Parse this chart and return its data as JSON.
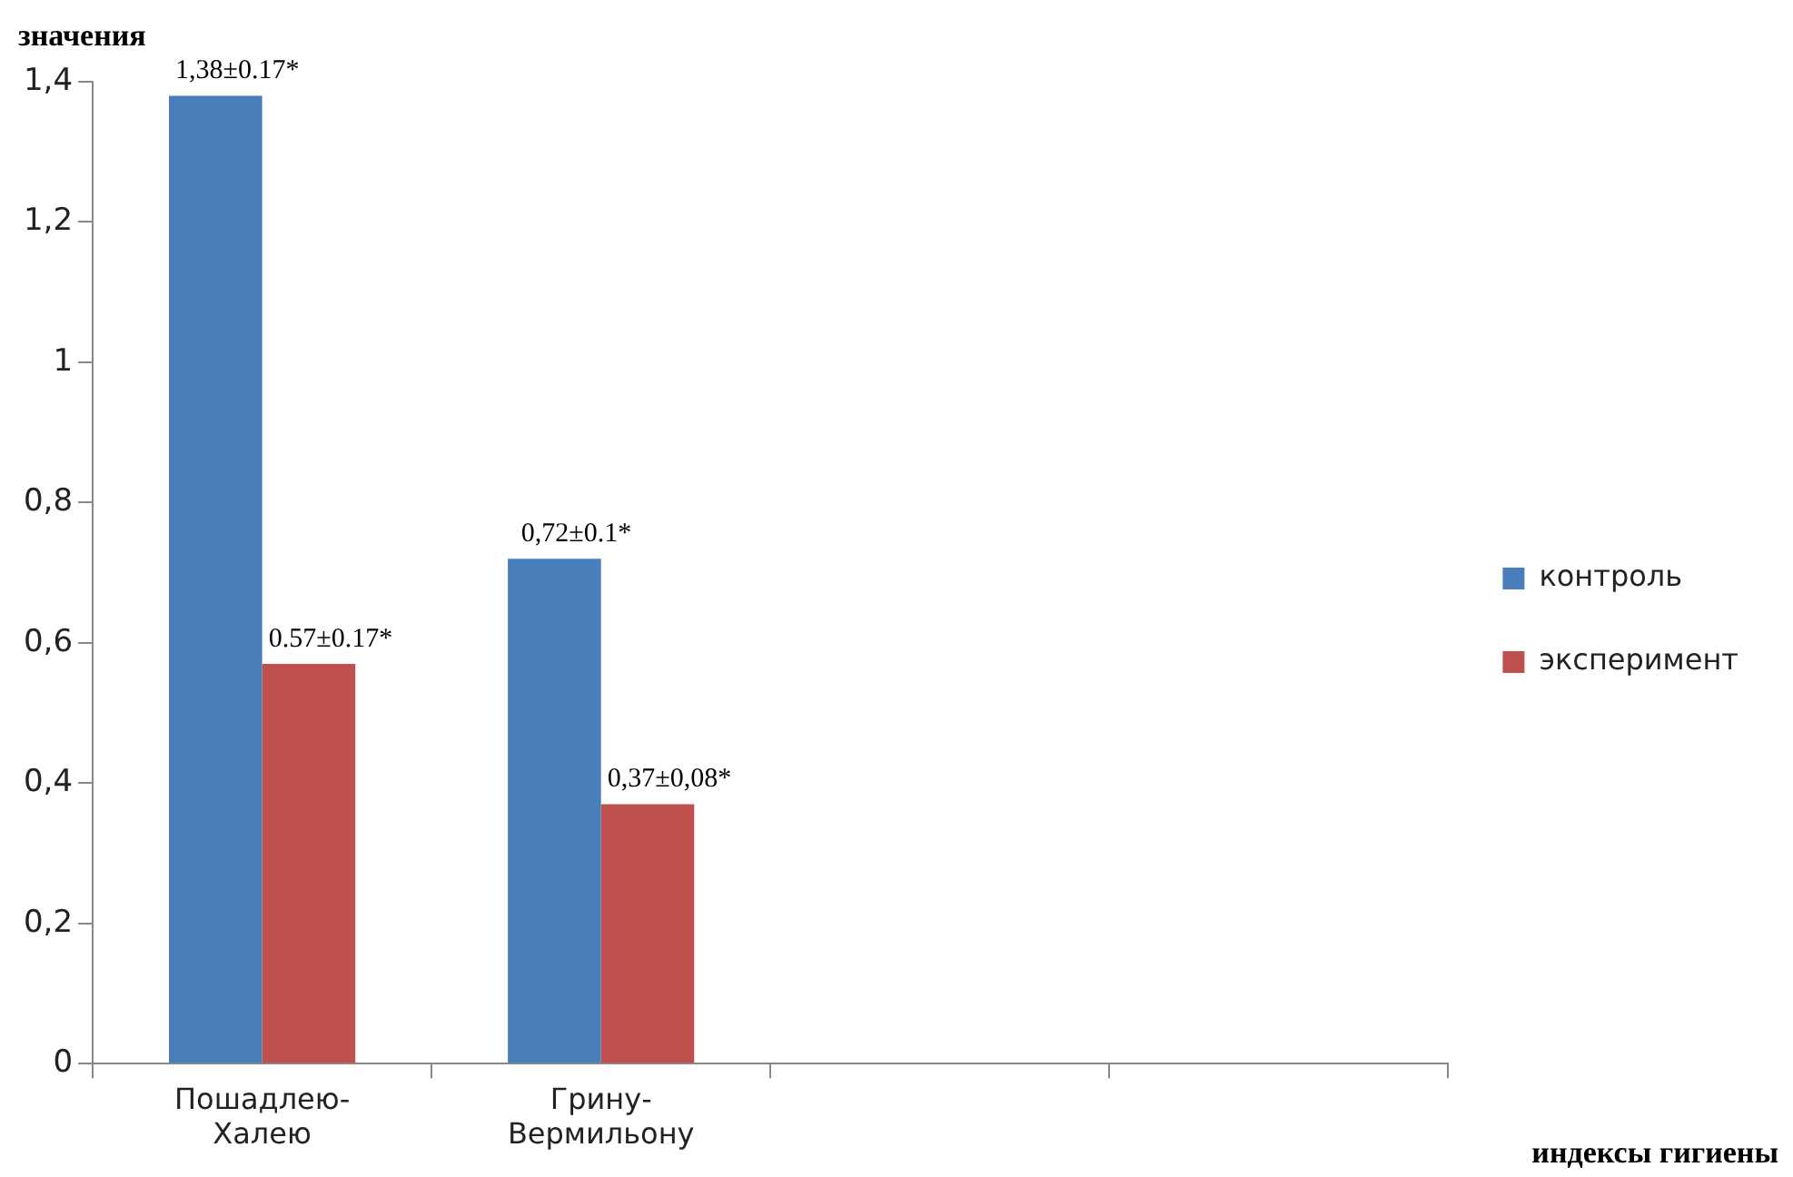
{
  "chart_data": {
    "type": "bar",
    "ylabel": "значения",
    "xlabel": "индексы гигиены",
    "categories": [
      "Пошадлею-Халею",
      "Грину-Вермильону",
      null,
      null
    ],
    "series": [
      {
        "name": "контроль",
        "color": "#4a7ebb",
        "values": [
          1.38,
          0.72,
          null,
          null
        ],
        "value_labels": [
          "1,38±0.17*",
          "0,72±0.1*",
          null,
          null
        ]
      },
      {
        "name": "эксперимент",
        "color": "#c0504d",
        "values": [
          0.57,
          0.37,
          null,
          null
        ],
        "value_labels": [
          "0.57±0.17*",
          "0,37±0,08*",
          null,
          null
        ]
      }
    ],
    "ylim": [
      0,
      1.4
    ],
    "yticks": [
      0,
      {
        "value": 0.2,
        "label": "0,2"
      },
      {
        "value": 0.4,
        "label": "0,4"
      },
      {
        "value": 0.6,
        "label": "0,6"
      },
      {
        "value": 0.8,
        "label": "0,8"
      },
      1,
      {
        "value": 1.2,
        "label": "1,2"
      },
      {
        "value": 1.4,
        "label": "1,4"
      }
    ],
    "grid": false,
    "legend": "right"
  }
}
